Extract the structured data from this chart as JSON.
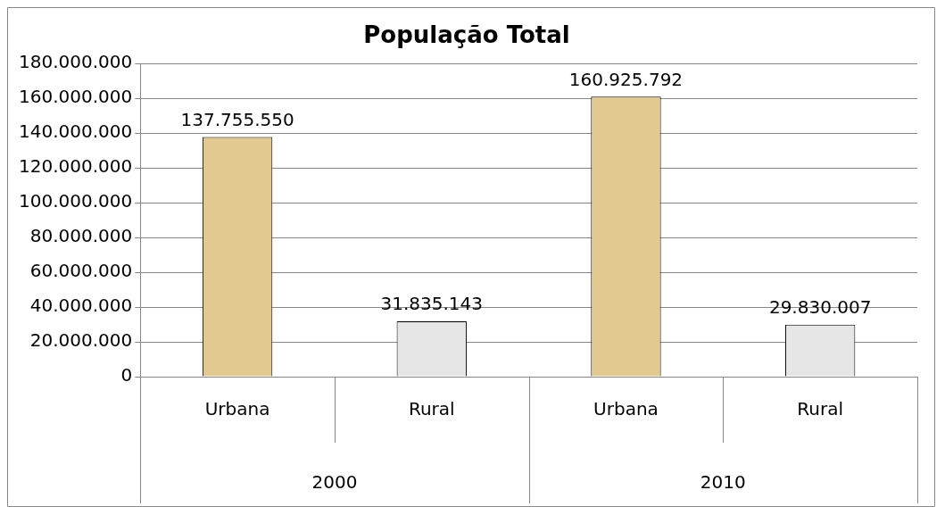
{
  "chart_data": {
    "type": "bar",
    "title": "População Total",
    "categories": [
      "Urbana",
      "Rural",
      "Urbana",
      "Rural"
    ],
    "values": [
      137755550,
      31835143,
      160925792,
      29830007
    ],
    "colors": [
      "#e2c98f",
      "#e6e6e6",
      "#e2c98f",
      "#e6e6e6"
    ],
    "value_labels": [
      "137.755.550",
      "31.835.143",
      "160.925.792",
      "29.830.007"
    ],
    "annotations": [
      "2000",
      "2010"
    ],
    "ylim": [
      0,
      180000000
    ],
    "yticks": [
      {
        "value": 0,
        "label": "0"
      },
      {
        "value": 20000000,
        "label": "20.000.000"
      },
      {
        "value": 40000000,
        "label": "40.000.000"
      },
      {
        "value": 60000000,
        "label": "60.000.000"
      },
      {
        "value": 80000000,
        "label": "80.000.000"
      },
      {
        "value": 100000000,
        "label": "100.000.000"
      },
      {
        "value": 120000000,
        "label": "120.000.000"
      },
      {
        "value": 140000000,
        "label": "140.000.000"
      },
      {
        "value": 160000000,
        "label": "160.000.000"
      },
      {
        "value": 180000000,
        "label": "180.000.000"
      }
    ],
    "grid": "y",
    "legend": false
  }
}
